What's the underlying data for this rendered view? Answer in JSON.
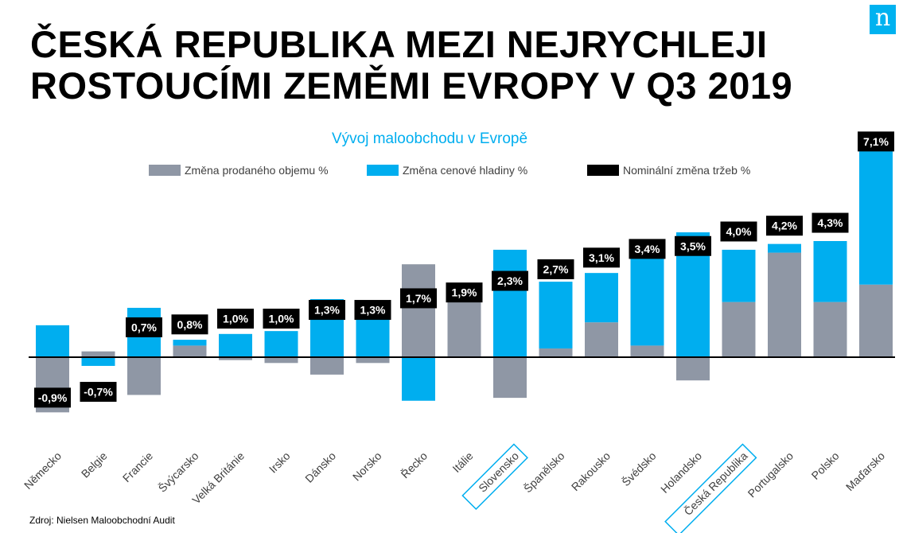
{
  "title_lines": [
    "ČESKÁ REPUBLIKA MEZI NEJRYCHLEJI",
    "ROSTOUCÍMI ZEMĚMI EVROPY V Q3 2019"
  ],
  "logo_text": "n",
  "source": "Zdroj: Nielsen Maloobchodní Audit",
  "colors": {
    "volume": "#8f97a5",
    "price": "#00aeef",
    "total": "#000000",
    "subtitle": "#00aeef",
    "highlight": "#00aeef"
  },
  "chart_data": {
    "type": "bar",
    "subtitle": "Vývoj maloobchodu v Evropě",
    "legend": [
      "Změna prodaného objemu %",
      "Změna cenové hladiny %",
      "Nominální změna tržeb %"
    ],
    "legend_position": "top",
    "highlighted": [
      "Slovensko",
      "Česká Republika"
    ],
    "categories": [
      "Německo",
      "Belgie",
      "Francie",
      "Švýcarsko",
      "Velká Británie",
      "Irsko",
      "Dánsko",
      "Norsko",
      "Řecko",
      "Itálie",
      "Slovensko",
      "Španělsko",
      "Rakousko",
      "Švédsko",
      "Holandsko",
      "Česká Republika",
      "Portugalsko",
      "Polsko",
      "Maďarsko"
    ],
    "series": [
      {
        "name": "Změna prodaného objemu %",
        "values": [
          -1.9,
          0.2,
          -1.3,
          0.4,
          -0.1,
          -0.2,
          -0.6,
          -0.2,
          3.2,
          1.9,
          -1.4,
          0.3,
          1.2,
          0.4,
          -0.8,
          1.9,
          3.6,
          1.9,
          2.5
        ]
      },
      {
        "name": "Změna cenové hladiny %",
        "values": [
          1.1,
          -0.3,
          1.7,
          0.2,
          0.8,
          0.9,
          2.0,
          1.3,
          -1.5,
          0.0,
          3.7,
          2.3,
          1.7,
          3.0,
          4.3,
          1.8,
          0.3,
          2.1,
          4.7
        ]
      },
      {
        "name": "Nominální změna tržeb %",
        "labels": [
          "-0,9%",
          "-0,7%",
          "0,7%",
          "0,8%",
          "1,0%",
          "1,0%",
          "1,3%",
          "1,3%",
          "1,7%",
          "1,9%",
          "2,3%",
          "2,7%",
          "3,1%",
          "3,4%",
          "3,5%",
          "4,0%",
          "4,2%",
          "4,3%",
          "7,1%"
        ],
        "values": [
          -0.9,
          -0.7,
          0.7,
          0.8,
          1.0,
          1.0,
          1.3,
          1.3,
          1.7,
          1.9,
          2.3,
          2.7,
          3.1,
          3.4,
          3.5,
          4.0,
          4.2,
          4.3,
          7.1
        ]
      }
    ]
  }
}
